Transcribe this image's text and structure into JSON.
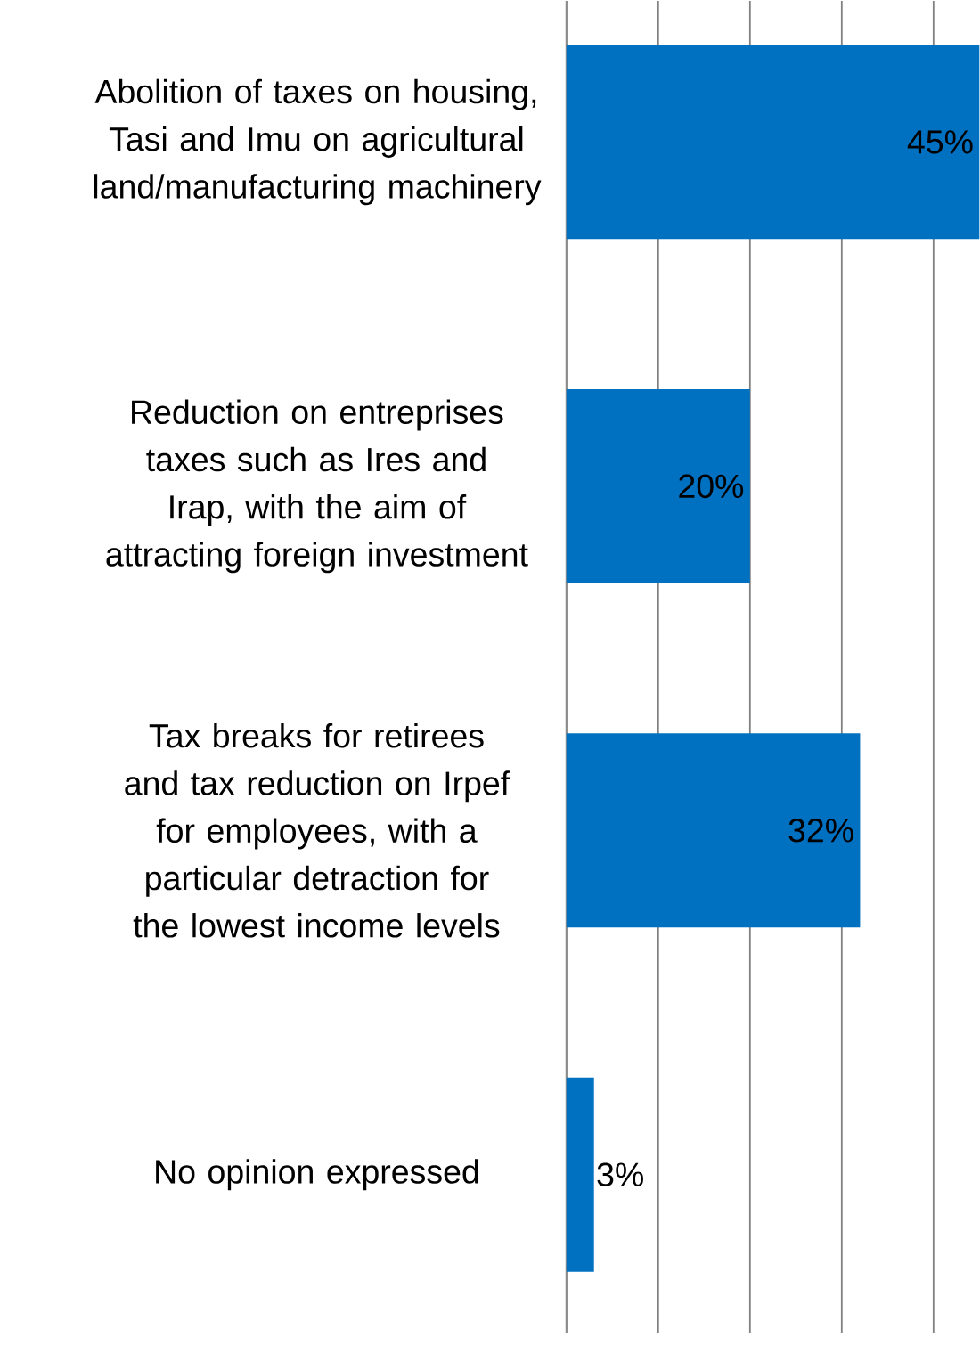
{
  "chart_data": {
    "type": "bar",
    "orientation": "horizontal",
    "categories": [
      "Abolition of taxes on housing, Tasi and Imu on agricultural land/manufacturing machinery",
      "Reduction on entreprises taxes such as Ires and Irap, with the aim of attracting foreign investment",
      "Tax breaks for retirees and tax reduction on Irpef for employees, with a particular detraction for the lowest income levels",
      "No opinion expressed"
    ],
    "values": [
      45,
      20,
      32,
      3
    ],
    "value_labels": [
      "45%",
      "20%",
      "32%",
      "3%"
    ],
    "color": "#0070c0",
    "xlim": [
      0,
      45
    ],
    "grid": "x",
    "tick_labels": "y"
  }
}
